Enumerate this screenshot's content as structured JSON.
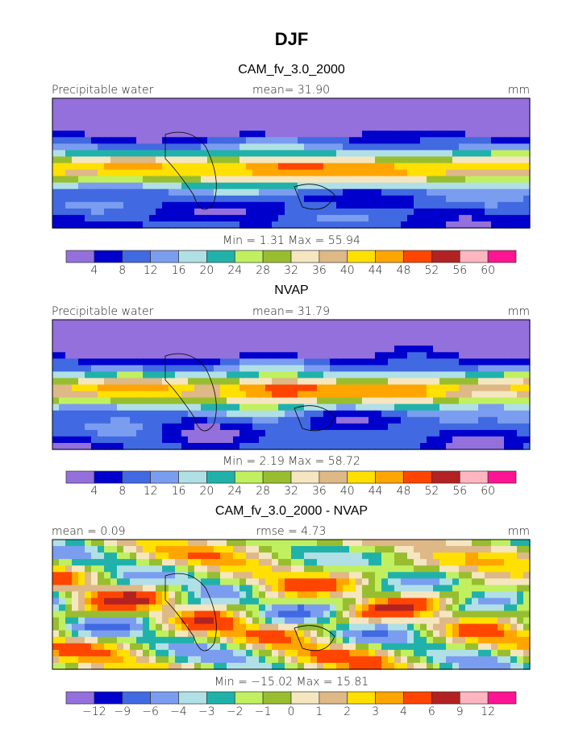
{
  "title": "DJF",
  "colors": [
    "#9370DB",
    "#0000CD",
    "#4169E1",
    "#7B9DF0",
    "#B0E0E6",
    "#20B2AA",
    "#C0F060",
    "#98BE30",
    "#F5E6C0",
    "#DEB887",
    "#FFE000",
    "#FFA500",
    "#FF4500",
    "#B22222",
    "#FFB6C1",
    "#FF1493"
  ],
  "panels": [
    {
      "title": "CAM_fv_3.0_2000",
      "left_label": "Precipitable water",
      "center_label": "mean=   31.90",
      "right_label": "mm",
      "minmax": "Min =    1.31  Max =   55.94",
      "levels": [
        "4",
        "8",
        "12",
        "16",
        "20",
        "24",
        "28",
        "32",
        "36",
        "40",
        "44",
        "48",
        "52",
        "56",
        "60"
      ]
    },
    {
      "title": "NVAP",
      "left_label": "Precipitable water",
      "center_label": "mean=   31.79",
      "right_label": "mm",
      "minmax": "Min =    2.19  Max =   58.72",
      "levels": [
        "4",
        "8",
        "12",
        "16",
        "20",
        "24",
        "28",
        "32",
        "36",
        "40",
        "44",
        "48",
        "52",
        "56",
        "60"
      ]
    },
    {
      "title": "CAM_fv_3.0_2000 - NVAP",
      "left_label": "mean =    0.09",
      "center_label": "rmse =    4.73",
      "right_label": "mm",
      "minmax": "Min = −15.02  Max =   15.81",
      "levels": [
        "−12",
        "−9",
        "−6",
        "−4",
        "−3",
        "−2",
        "−1",
        "0",
        "1",
        "2",
        "3",
        "4",
        "6",
        "9",
        "12"
      ]
    }
  ]
}
